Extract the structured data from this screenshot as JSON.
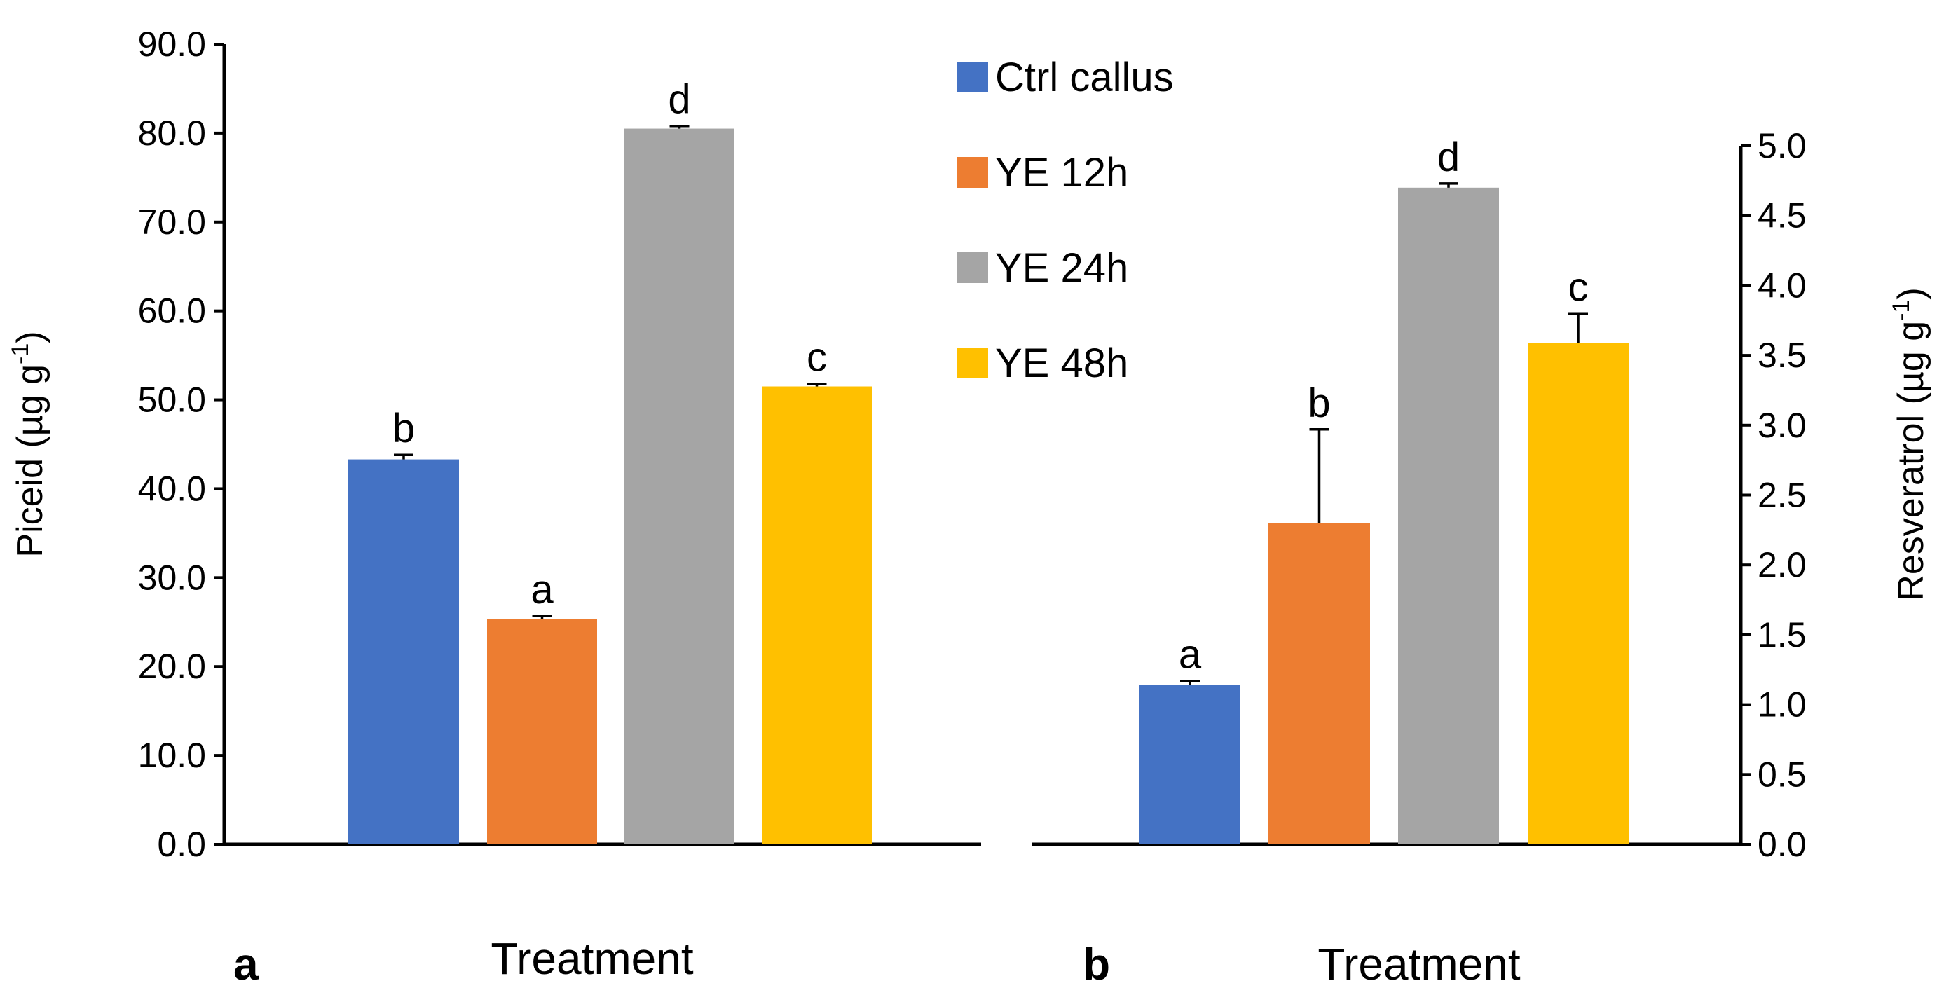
{
  "chart_data": [
    {
      "id": "a",
      "type": "bar",
      "panel_label": "a",
      "xlabel": "Treatment",
      "ylabel": "Piceid (µg g",
      "ylabel_sup": "-1",
      "ylabel_close": ")",
      "ylim": [
        0,
        90
      ],
      "yticks": [
        "0.0",
        "10.0",
        "20.0",
        "30.0",
        "40.0",
        "50.0",
        "60.0",
        "70.0",
        "80.0",
        "90.0"
      ],
      "ytick_step": 10,
      "axis_side": "left",
      "categories": [
        "Ctrl callus",
        "YE 12h",
        "YE 24h",
        "YE 48h"
      ],
      "values": [
        43.3,
        25.3,
        80.5,
        51.5
      ],
      "errors": [
        0.5,
        0.4,
        0.3,
        0.3
      ],
      "significance": [
        "b",
        "a",
        "d",
        "c"
      ],
      "colors": [
        "#4472C4",
        "#ED7D31",
        "#A5A5A5",
        "#FFC000"
      ]
    },
    {
      "id": "b",
      "type": "bar",
      "panel_label": "b",
      "xlabel": "Treatment",
      "ylabel": "Resveratrol  (µg g",
      "ylabel_sup": "-1",
      "ylabel_close": ")",
      "ylim": [
        0,
        5
      ],
      "yticks": [
        "0.0",
        "0.5",
        "1.0",
        "1.5",
        "2.0",
        "2.5",
        "3.0",
        "3.5",
        "4.0",
        "4.5",
        "5.0"
      ],
      "ytick_step": 0.5,
      "axis_side": "right",
      "categories": [
        "Ctrl callus",
        "YE 12h",
        "YE 24h",
        "YE 48h"
      ],
      "values": [
        1.14,
        2.3,
        4.7,
        3.59
      ],
      "errors": [
        0.03,
        0.67,
        0.03,
        0.21
      ],
      "significance": [
        "a",
        "b",
        "d",
        "c"
      ],
      "colors": [
        "#4472C4",
        "#ED7D31",
        "#A5A5A5",
        "#FFC000"
      ]
    }
  ],
  "legend": {
    "entries": [
      {
        "label": "Ctrl callus",
        "color": "#4472C4"
      },
      {
        "label": "YE 12h",
        "color": "#ED7D31"
      },
      {
        "label": "YE 24h",
        "color": "#A5A5A5"
      },
      {
        "label": "YE 48h",
        "color": "#FFC000"
      }
    ]
  }
}
